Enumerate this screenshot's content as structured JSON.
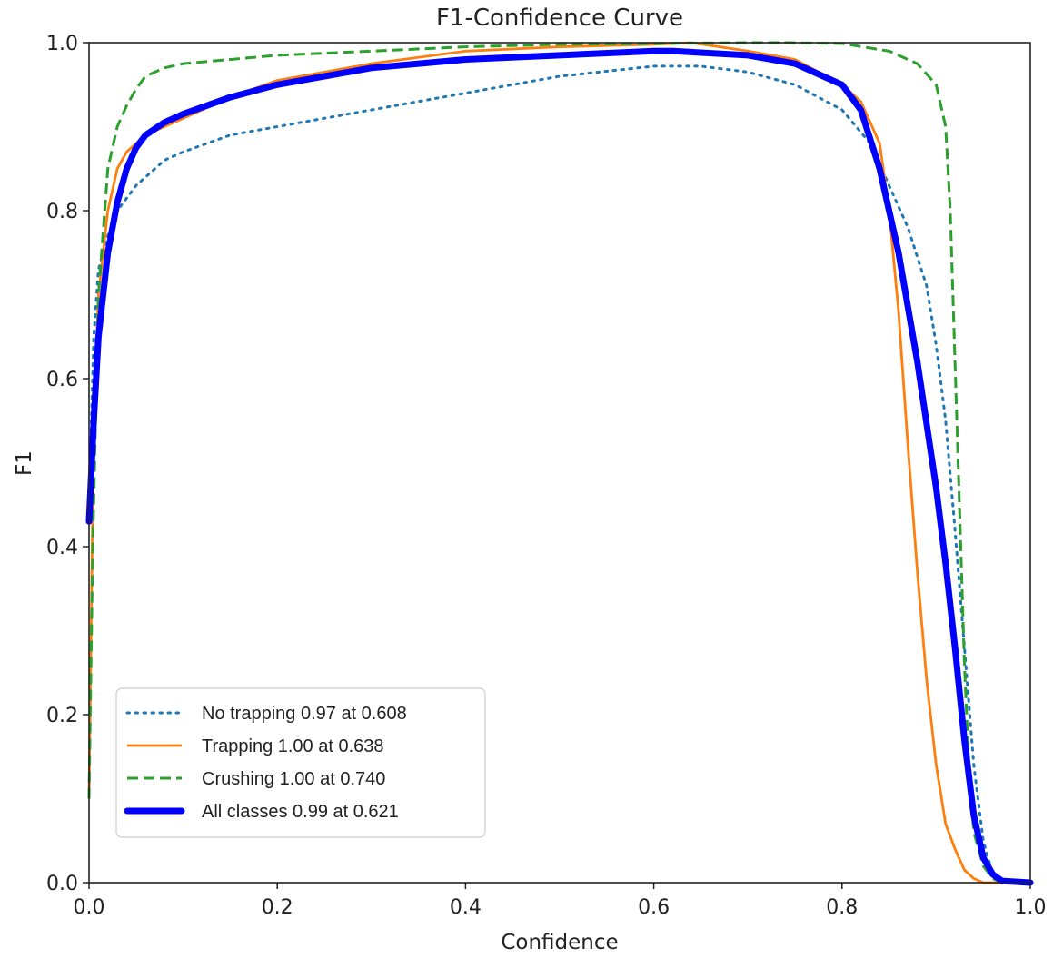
{
  "chart_data": {
    "type": "line",
    "title": "F1-Confidence Curve",
    "xlabel": "Confidence",
    "ylabel": "F1",
    "xlim": [
      0,
      1
    ],
    "ylim": [
      0,
      1
    ],
    "x_ticks": [
      "0.0",
      "0.2",
      "0.4",
      "0.6",
      "0.8",
      "1.0"
    ],
    "y_ticks": [
      "0.0",
      "0.2",
      "0.4",
      "0.6",
      "0.8",
      "1.0"
    ],
    "grid": false,
    "legend_position": "lower-left",
    "series": [
      {
        "name": "No trapping 0.97 at 0.608",
        "color": "#1f77b4",
        "style": "dotted",
        "x": [
          0,
          0.005,
          0.01,
          0.02,
          0.03,
          0.05,
          0.08,
          0.1,
          0.15,
          0.2,
          0.3,
          0.4,
          0.5,
          0.6,
          0.65,
          0.7,
          0.75,
          0.8,
          0.83,
          0.85,
          0.87,
          0.89,
          0.9,
          0.91,
          0.92,
          0.93,
          0.94,
          0.95,
          0.96,
          0.97,
          1.0
        ],
        "y": [
          0.45,
          0.65,
          0.73,
          0.77,
          0.8,
          0.83,
          0.86,
          0.87,
          0.89,
          0.9,
          0.92,
          0.94,
          0.96,
          0.972,
          0.972,
          0.965,
          0.95,
          0.92,
          0.88,
          0.83,
          0.78,
          0.71,
          0.64,
          0.55,
          0.42,
          0.28,
          0.14,
          0.05,
          0.01,
          0.0,
          0.0
        ]
      },
      {
        "name": "Trapping 1.00 at 0.638",
        "color": "#ff7f0e",
        "style": "solid",
        "x": [
          0,
          0.005,
          0.01,
          0.02,
          0.03,
          0.04,
          0.06,
          0.08,
          0.1,
          0.15,
          0.2,
          0.3,
          0.4,
          0.5,
          0.6,
          0.64,
          0.7,
          0.75,
          0.8,
          0.82,
          0.84,
          0.85,
          0.86,
          0.87,
          0.88,
          0.89,
          0.9,
          0.91,
          0.92,
          0.93,
          0.94,
          0.95,
          1.0
        ],
        "y": [
          0.1,
          0.55,
          0.7,
          0.8,
          0.85,
          0.87,
          0.89,
          0.9,
          0.91,
          0.935,
          0.955,
          0.975,
          0.99,
          0.995,
          0.998,
          1.0,
          0.99,
          0.98,
          0.95,
          0.93,
          0.88,
          0.8,
          0.68,
          0.52,
          0.37,
          0.24,
          0.14,
          0.07,
          0.04,
          0.015,
          0.005,
          0.0,
          0.0
        ]
      },
      {
        "name": "Crushing 1.00 at 0.740",
        "color": "#2ca02c",
        "style": "dashed",
        "x": [
          0,
          0.004,
          0.01,
          0.02,
          0.03,
          0.04,
          0.05,
          0.06,
          0.08,
          0.1,
          0.15,
          0.2,
          0.3,
          0.4,
          0.5,
          0.6,
          0.7,
          0.74,
          0.8,
          0.85,
          0.88,
          0.9,
          0.91,
          0.915,
          0.92,
          0.925,
          0.93,
          0.935,
          0.94,
          0.95,
          0.96,
          0.97,
          1.0
        ],
        "y": [
          0.1,
          0.4,
          0.7,
          0.85,
          0.9,
          0.925,
          0.945,
          0.96,
          0.97,
          0.975,
          0.98,
          0.985,
          0.99,
          0.995,
          0.998,
          0.999,
          1.0,
          1.0,
          0.999,
          0.99,
          0.975,
          0.95,
          0.9,
          0.8,
          0.62,
          0.44,
          0.26,
          0.13,
          0.06,
          0.02,
          0.005,
          0.0,
          0.0
        ]
      },
      {
        "name": "All classes 0.99 at 0.621",
        "color": "#0000ff",
        "style": "thick",
        "x": [
          0,
          0.005,
          0.01,
          0.02,
          0.03,
          0.04,
          0.05,
          0.06,
          0.08,
          0.1,
          0.15,
          0.2,
          0.3,
          0.4,
          0.5,
          0.6,
          0.621,
          0.7,
          0.75,
          0.8,
          0.82,
          0.84,
          0.86,
          0.88,
          0.9,
          0.91,
          0.92,
          0.93,
          0.94,
          0.95,
          0.96,
          0.97,
          1.0
        ],
        "y": [
          0.43,
          0.55,
          0.65,
          0.75,
          0.81,
          0.85,
          0.875,
          0.89,
          0.905,
          0.915,
          0.935,
          0.95,
          0.97,
          0.98,
          0.985,
          0.99,
          0.99,
          0.985,
          0.975,
          0.95,
          0.92,
          0.85,
          0.75,
          0.62,
          0.47,
          0.38,
          0.28,
          0.17,
          0.08,
          0.03,
          0.01,
          0.002,
          0.0
        ]
      }
    ]
  }
}
